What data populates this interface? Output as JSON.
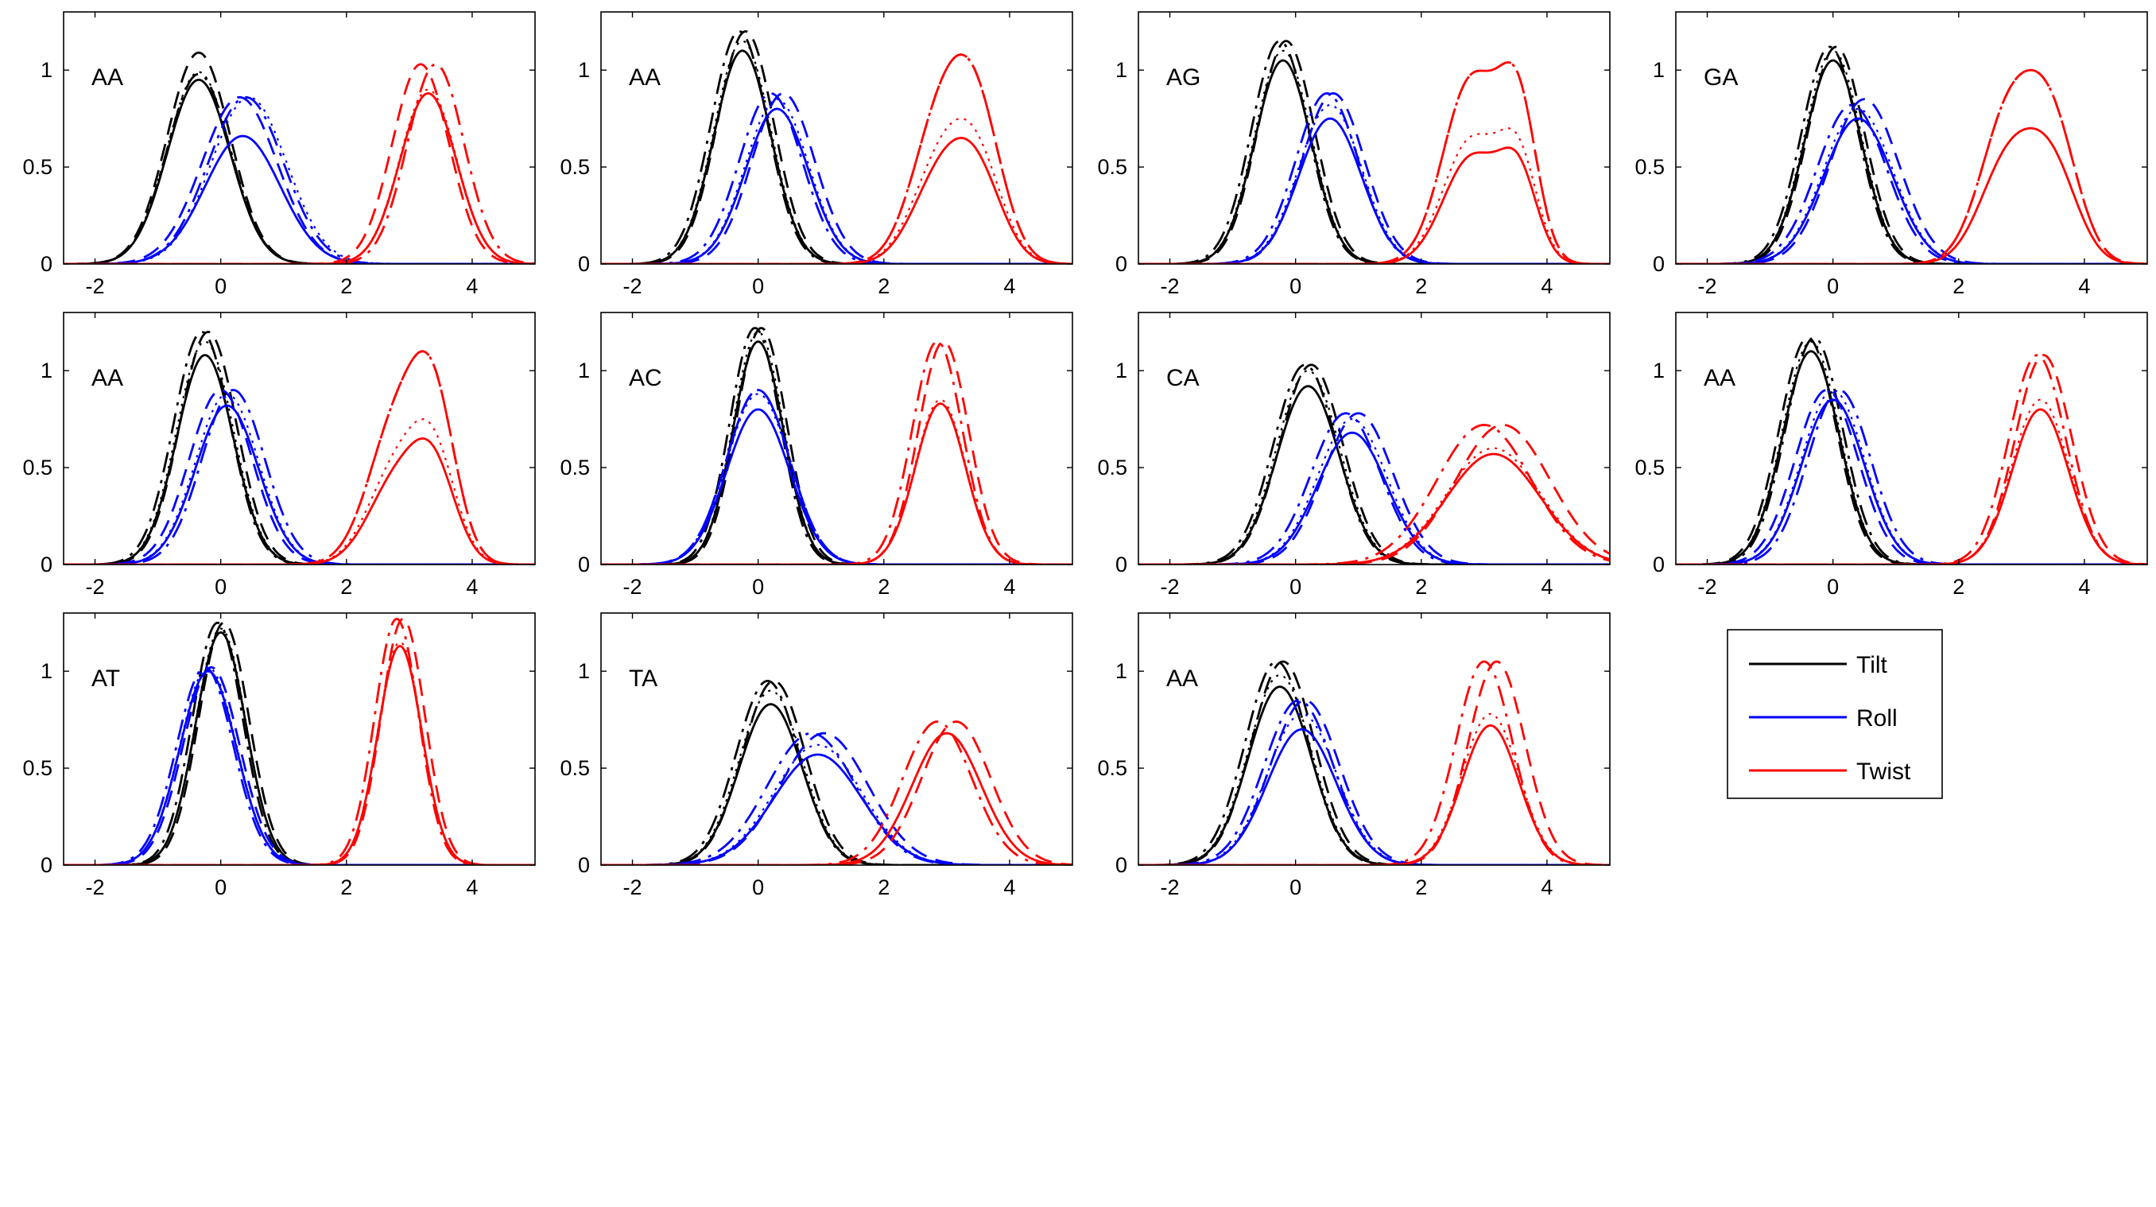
{
  "chart_data": {
    "type": "line",
    "grid": false,
    "xlim": [
      -2.5,
      5
    ],
    "ylim": [
      0,
      1.3
    ],
    "xticks": [
      -2,
      0,
      2,
      4
    ],
    "yticks": [
      0,
      0.5,
      1
    ],
    "line_styles": [
      "solid",
      "dotted",
      "dashdot",
      "dashed"
    ],
    "series_colors": {
      "Tilt": "#000000",
      "Roll": "#0000ff",
      "Twist": "#ff0000"
    },
    "legend": {
      "placement": "bottom-right",
      "entries": [
        {
          "label": "Tilt",
          "color": "#000000"
        },
        {
          "label": "Roll",
          "color": "#0000ff"
        },
        {
          "label": "Twist",
          "color": "#ff0000"
        }
      ]
    },
    "panels": [
      {
        "label": "AA",
        "Tilt": [
          {
            "m": [
              [
                -0.35,
                0.5,
                1.0
              ]
            ],
            "s": [
              0.95,
              0.99,
              0.98,
              1.09
            ]
          }
        ],
        "Roll": [
          {
            "m": [
              [
                0.35,
                0.6,
                1.0
              ]
            ],
            "s": [
              0.66,
              0.86,
              0.86,
              0.86
            ],
            "d": [
              0,
              0.1,
              0.05,
              -0.05
            ]
          }
        ],
        "Twist": [
          {
            "m": [
              [
                3.3,
                0.45,
                1.0
              ]
            ],
            "s": [
              0.88,
              0.9,
              1.03,
              1.03
            ],
            "d": [
              0,
              0,
              0.12,
              -0.12
            ]
          }
        ]
      },
      {
        "label": "AA",
        "Tilt": [
          {
            "m": [
              [
                -0.25,
                0.45,
                1.0
              ]
            ],
            "s": [
              1.1,
              1.15,
              1.2,
              1.2
            ],
            "d": [
              0,
              0,
              -0.05,
              0.05
            ]
          }
        ],
        "Roll": [
          {
            "m": [
              [
                0.3,
                0.5,
                1.0
              ]
            ],
            "s": [
              0.8,
              0.85,
              0.88,
              0.88
            ],
            "d": [
              0,
              0,
              -0.1,
              0.1
            ]
          }
        ],
        "Twist": [
          {
            "m": [
              [
                2.9,
                0.45,
                0.6
              ],
              [
                3.5,
                0.4,
                0.55
              ]
            ],
            "s": [
              0.65,
              0.75,
              1.08,
              1.08
            ]
          }
        ]
      },
      {
        "label": "AG",
        "Tilt": [
          {
            "m": [
              [
                -0.2,
                0.45,
                1.0
              ]
            ],
            "s": [
              1.05,
              1.1,
              1.15,
              1.15
            ],
            "d": [
              0,
              0,
              -0.05,
              0.05
            ]
          }
        ],
        "Roll": [
          {
            "m": [
              [
                0.55,
                0.5,
                1.0
              ]
            ],
            "s": [
              0.75,
              0.82,
              0.88,
              0.88
            ],
            "d": [
              0,
              0,
              -0.05,
              0.05
            ]
          }
        ],
        "Twist": [
          {
            "m": [
              [
                2.8,
                0.45,
                0.58
              ],
              [
                3.55,
                0.3,
                0.45
              ]
            ],
            "s": [
              0.6,
              0.7,
              1.04,
              1.04
            ]
          }
        ]
      },
      {
        "label": "GA",
        "Tilt": [
          {
            "m": [
              [
                0.0,
                0.45,
                1.0
              ]
            ],
            "s": [
              1.05,
              1.1,
              1.12,
              1.12
            ],
            "d": [
              0,
              0,
              -0.05,
              0.05
            ]
          }
        ],
        "Roll": [
          {
            "m": [
              [
                0.4,
                0.55,
                1.0
              ]
            ],
            "s": [
              0.75,
              0.8,
              0.82,
              0.85
            ],
            "d": [
              0,
              0,
              -0.1,
              0.1
            ]
          }
        ],
        "Twist": [
          {
            "m": [
              [
                2.8,
                0.45,
                0.65
              ],
              [
                3.5,
                0.4,
                0.55
              ]
            ],
            "s": [
              0.7,
              0.7,
              1.0,
              1.0
            ]
          }
        ]
      },
      {
        "label": "AA",
        "Tilt": [
          {
            "m": [
              [
                -0.25,
                0.45,
                1.0
              ]
            ],
            "s": [
              1.08,
              1.15,
              1.2,
              1.2
            ],
            "d": [
              0,
              0,
              -0.05,
              0.05
            ]
          }
        ],
        "Roll": [
          {
            "m": [
              [
                0.1,
                0.5,
                1.0
              ]
            ],
            "s": [
              0.82,
              0.88,
              0.9,
              0.9
            ],
            "d": [
              0,
              0,
              0.1,
              -0.1
            ]
          }
        ],
        "Twist": [
          {
            "m": [
              [
                2.8,
                0.45,
                0.55
              ],
              [
                3.4,
                0.35,
                0.55
              ]
            ],
            "s": [
              0.65,
              0.75,
              1.1,
              1.1
            ]
          }
        ]
      },
      {
        "label": "AC",
        "Tilt": [
          {
            "m": [
              [
                0.0,
                0.4,
                1.0
              ]
            ],
            "s": [
              1.15,
              1.2,
              1.22,
              1.22
            ],
            "d": [
              0,
              0,
              -0.05,
              0.05
            ]
          }
        ],
        "Roll": [
          {
            "m": [
              [
                0.0,
                0.5,
                1.0
              ]
            ],
            "s": [
              0.8,
              0.88,
              0.9,
              0.9
            ]
          }
        ],
        "Twist": [
          {
            "m": [
              [
                2.9,
                0.4,
                1.0
              ]
            ],
            "s": [
              0.83,
              0.85,
              1.15,
              1.15
            ],
            "d": [
              0,
              0,
              -0.05,
              0.05
            ]
          }
        ]
      },
      {
        "label": "CA",
        "Tilt": [
          {
            "m": [
              [
                0.2,
                0.5,
                1.0
              ]
            ],
            "s": [
              0.92,
              1.0,
              1.03,
              1.03
            ],
            "d": [
              0,
              0,
              -0.05,
              0.05
            ]
          }
        ],
        "Roll": [
          {
            "m": [
              [
                0.9,
                0.55,
                1.0
              ]
            ],
            "s": [
              0.68,
              0.75,
              0.78,
              0.78
            ],
            "d": [
              0,
              0,
              -0.1,
              0.1
            ]
          }
        ],
        "Twist": [
          {
            "m": [
              [
                3.15,
                0.75,
                1.0
              ]
            ],
            "s": [
              0.57,
              0.6,
              0.72,
              0.72
            ],
            "d": [
              0,
              0,
              -0.15,
              0.15
            ]
          }
        ]
      },
      {
        "label": "AA",
        "Tilt": [
          {
            "m": [
              [
                -0.35,
                0.45,
                1.0
              ]
            ],
            "s": [
              1.1,
              1.15,
              1.17,
              1.17
            ],
            "d": [
              0,
              0,
              0.05,
              -0.05
            ]
          }
        ],
        "Roll": [
          {
            "m": [
              [
                0.0,
                0.5,
                1.0
              ]
            ],
            "s": [
              0.85,
              0.9,
              0.9,
              0.9
            ],
            "d": [
              0,
              0,
              0.1,
              -0.1
            ]
          }
        ],
        "Twist": [
          {
            "m": [
              [
                3.3,
                0.45,
                1.0
              ]
            ],
            "s": [
              0.8,
              0.85,
              1.08,
              1.08
            ],
            "d": [
              0,
              0,
              -0.05,
              0.05
            ]
          }
        ]
      },
      {
        "label": "AT",
        "Tilt": [
          {
            "m": [
              [
                0.0,
                0.4,
                1.0
              ]
            ],
            "s": [
              1.2,
              1.22,
              1.25,
              1.25
            ],
            "d": [
              0,
              0,
              -0.05,
              0.05
            ]
          }
        ],
        "Roll": [
          {
            "m": [
              [
                -0.2,
                0.45,
                1.0
              ]
            ],
            "s": [
              1.0,
              1.02,
              1.02,
              1.02
            ],
            "d": [
              0,
              0,
              -0.05,
              0.05
            ]
          }
        ],
        "Twist": [
          {
            "m": [
              [
                2.85,
                0.35,
                1.0
              ]
            ],
            "s": [
              1.13,
              1.15,
              1.27,
              1.27
            ],
            "d": [
              0,
              0,
              -0.05,
              0.05
            ]
          }
        ]
      },
      {
        "label": "TA",
        "Tilt": [
          {
            "m": [
              [
                0.2,
                0.5,
                1.0
              ]
            ],
            "s": [
              0.83,
              0.9,
              0.95,
              0.95
            ],
            "d": [
              0,
              0,
              -0.05,
              0.05
            ]
          }
        ],
        "Roll": [
          {
            "m": [
              [
                0.95,
                0.7,
                1.0
              ]
            ],
            "s": [
              0.57,
              0.62,
              0.68,
              0.68
            ],
            "d": [
              0,
              0,
              -0.1,
              0.1
            ]
          }
        ],
        "Twist": [
          {
            "m": [
              [
                3.0,
                0.55,
                1.0
              ]
            ],
            "s": [
              0.68,
              0.68,
              0.74,
              0.74
            ],
            "d": [
              0,
              0,
              -0.15,
              0.15
            ]
          }
        ]
      },
      {
        "label": "AA",
        "Tilt": [
          {
            "m": [
              [
                -0.25,
                0.5,
                1.0
              ]
            ],
            "s": [
              0.92,
              0.98,
              1.05,
              1.05
            ],
            "d": [
              0,
              0,
              -0.05,
              0.05
            ]
          }
        ],
        "Roll": [
          {
            "m": [
              [
                0.1,
                0.55,
                1.0
              ]
            ],
            "s": [
              0.7,
              0.78,
              0.85,
              0.85
            ],
            "d": [
              0,
              0,
              -0.05,
              0.05
            ]
          }
        ],
        "Twist": [
          {
            "m": [
              [
                3.1,
                0.45,
                1.0
              ]
            ],
            "s": [
              0.72,
              0.78,
              1.05,
              1.05
            ],
            "d": [
              0,
              0,
              -0.1,
              0.1
            ]
          }
        ]
      }
    ]
  }
}
